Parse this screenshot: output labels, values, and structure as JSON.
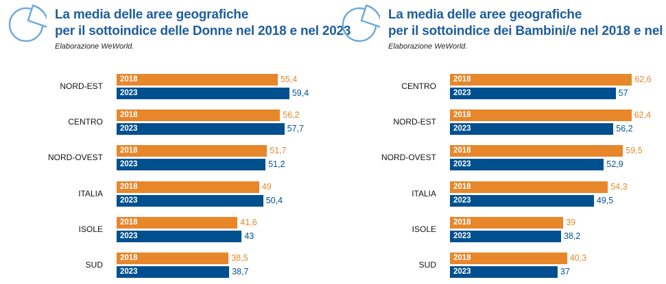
{
  "colors": {
    "y2018": "#e8862a",
    "y2023": "#00508f",
    "title": "#1d5e9c",
    "logo": "#6fa8dc"
  },
  "chart_data": [
    {
      "type": "bar",
      "orientation": "horizontal",
      "title": "La media delle aree geografiche per il sottoindice delle Donne nel 2018 e nel 2023",
      "title_lines": [
        "La media delle aree geografiche",
        "per il sottoindice delle Donne nel 2018 e nel 2023"
      ],
      "subtitle": "Elaborazione WeWorld.",
      "categories": [
        "NORD-EST",
        "CENTRO",
        "NORD-OVEST",
        "ITALIA",
        "ISOLE",
        "SUD"
      ],
      "series": [
        {
          "name": "2018",
          "values": [
            55.4,
            56.2,
            51.7,
            49,
            41.6,
            38.5
          ],
          "labels": [
            "55,4",
            "56,2",
            "51,7",
            "49",
            "41,6",
            "38,5"
          ]
        },
        {
          "name": "2023",
          "values": [
            59.4,
            57.7,
            51.2,
            50.4,
            43,
            38.7
          ],
          "labels": [
            "59,4",
            "57,7",
            "51,2",
            "50,4",
            "43",
            "38,7"
          ]
        }
      ]
    },
    {
      "type": "bar",
      "orientation": "horizontal",
      "title": "La media delle aree geografiche per il sottoindice dei Bambini/e nel 2018 e nel 2023",
      "title_lines": [
        "La media delle aree geografiche",
        "per il sottoindice dei Bambini/e nel 2018 e nel 2023"
      ],
      "subtitle": "Elaborazione WeWorld.",
      "categories": [
        "CENTRO",
        "NORD-EST",
        "NORD-OVEST",
        "ITALIA",
        "ISOLE",
        "SUD"
      ],
      "series": [
        {
          "name": "2018",
          "values": [
            62.6,
            62.4,
            59.5,
            54.3,
            39,
            40.3
          ],
          "labels": [
            "62,6",
            "62,4",
            "59,5",
            "54,3",
            "39",
            "40,3"
          ]
        },
        {
          "name": "2023",
          "values": [
            57,
            56.2,
            52.9,
            49.5,
            38.2,
            37
          ],
          "labels": [
            "57",
            "56,2",
            "52,9",
            "49,5",
            "38,2",
            "37"
          ]
        }
      ]
    }
  ]
}
